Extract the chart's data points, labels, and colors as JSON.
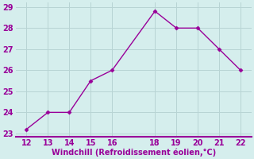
{
  "x": [
    12,
    13,
    14,
    15,
    16,
    18,
    19,
    20,
    21,
    22
  ],
  "y": [
    23.2,
    24.0,
    24.0,
    25.5,
    26.0,
    28.8,
    28.0,
    28.0,
    27.0,
    26.0
  ],
  "line_color": "#990099",
  "marker": "D",
  "marker_size": 2.5,
  "background_color": "#d5eeed",
  "grid_color": "#b8d4d4",
  "xlabel": "Windchill (Refroidissement éolien,°C)",
  "xlabel_color": "#990099",
  "tick_color": "#990099",
  "label_color": "#990099",
  "border_color": "#990099",
  "xlim": [
    11.5,
    22.5
  ],
  "ylim": [
    22.85,
    29.2
  ],
  "xticks": [
    12,
    13,
    14,
    15,
    16,
    18,
    19,
    20,
    21,
    22
  ],
  "yticks": [
    23,
    24,
    25,
    26,
    27,
    28,
    29
  ],
  "font_size": 7.0,
  "linewidth": 1.0
}
